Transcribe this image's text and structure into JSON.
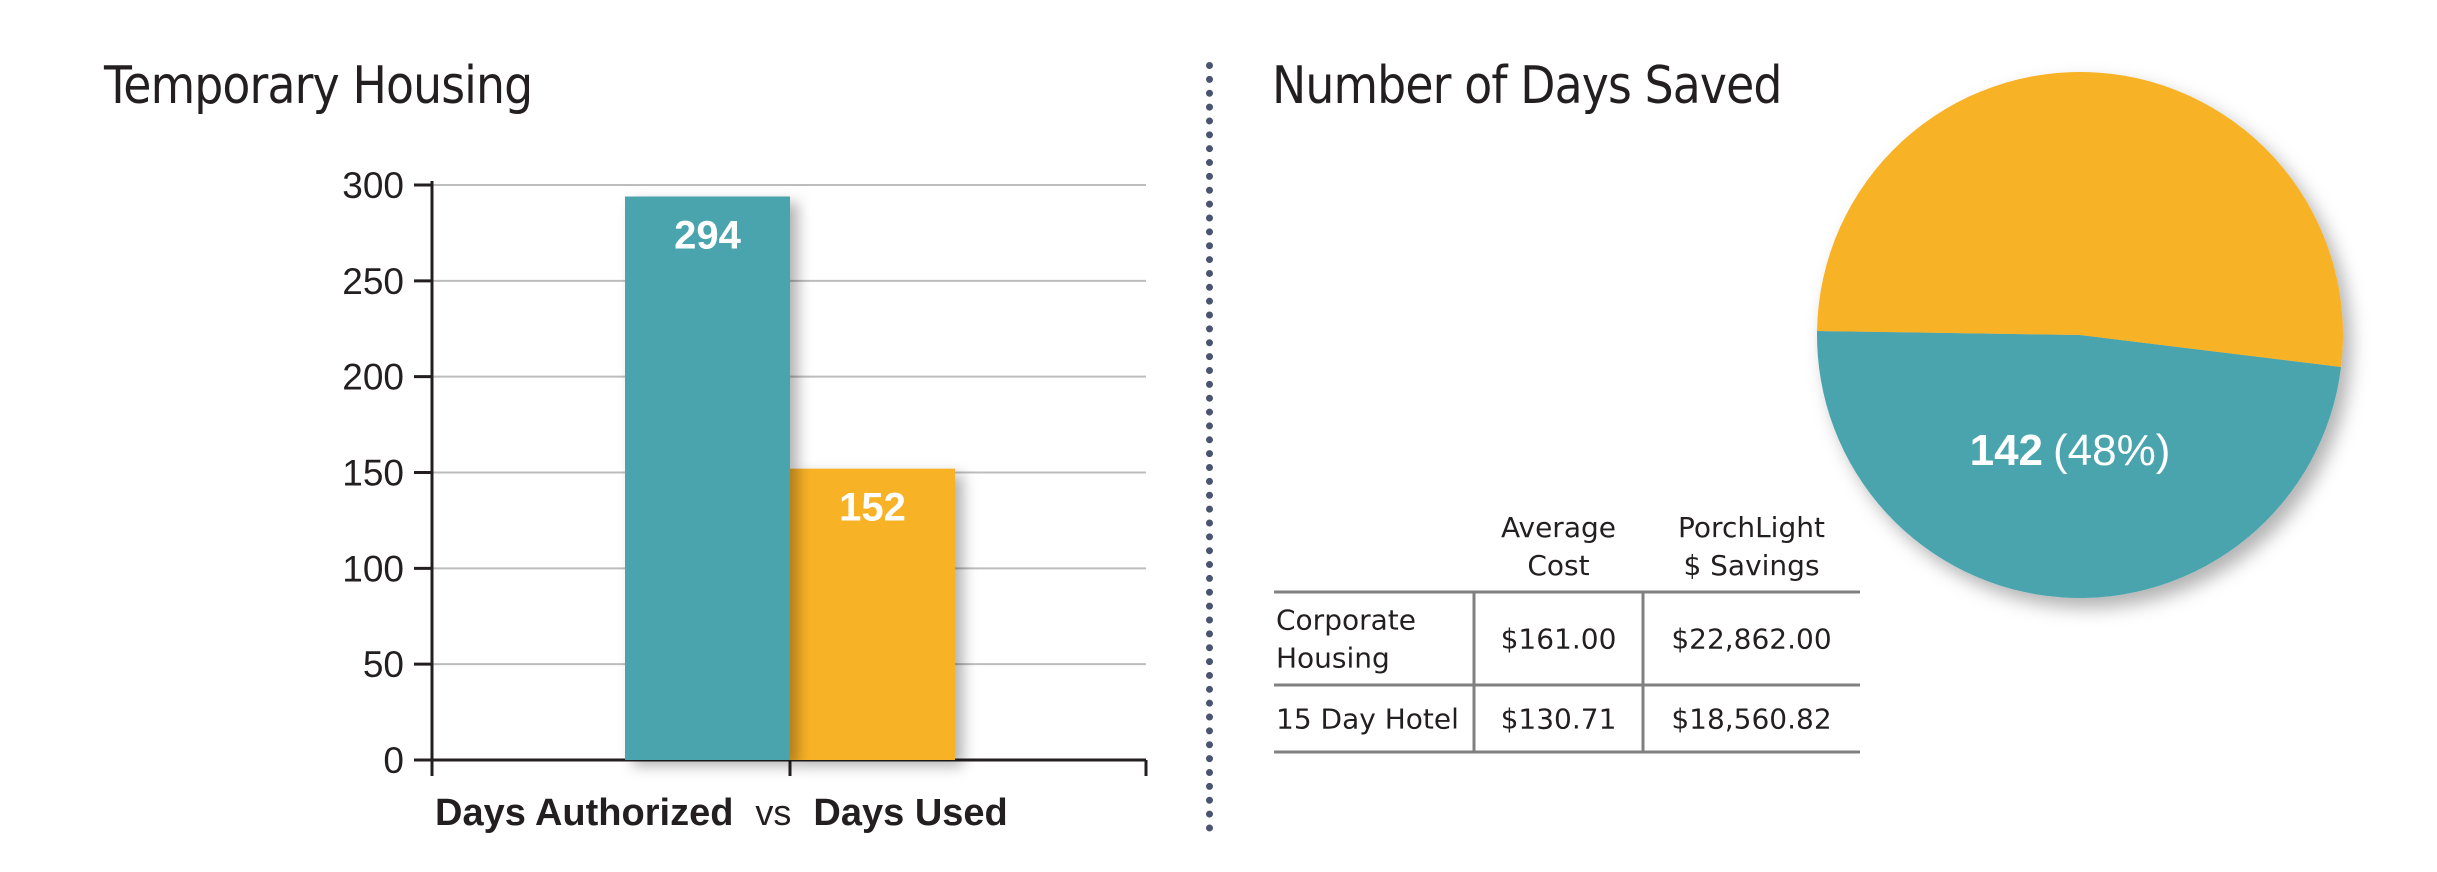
{
  "titles": {
    "left": "Temporary Housing",
    "right": "Number of Days Saved"
  },
  "colors": {
    "teal": "#48a4ae",
    "orange": "#f8b226",
    "gridline": "#bdbdbd",
    "axis": "#231f20",
    "divider": "#4a5470"
  },
  "chart_data": [
    {
      "type": "bar",
      "title": "Temporary Housing",
      "categories": [
        "Days Authorized",
        "Days Used"
      ],
      "values": [
        294,
        152
      ],
      "data_labels": [
        "294",
        "152"
      ],
      "colors": [
        "#48a4ae",
        "#f8b226"
      ],
      "xlabel_parts": [
        "Days Authorized",
        "vs",
        "Days Used"
      ],
      "ylim": [
        0,
        300
      ],
      "yticks": [
        0,
        50,
        100,
        150,
        200,
        250,
        300
      ],
      "grid": true
    },
    {
      "type": "pie",
      "title": "Number of Days Saved",
      "slices": [
        {
          "value": 142,
          "percent": 48,
          "color": "#48a4ae",
          "label_value": "142",
          "label_pct": "(48%)"
        },
        {
          "value": 152,
          "percent": 52,
          "color": "#f8b226"
        }
      ]
    },
    {
      "type": "table",
      "headers": [
        "",
        "Average\nCost",
        "PorchLight\n$ Savings"
      ],
      "rows": [
        [
          "Corporate\nHousing",
          "$161.00",
          "$22,862.00"
        ],
        [
          "15 Day Hotel",
          "$130.71",
          "$18,560.82"
        ]
      ]
    }
  ]
}
